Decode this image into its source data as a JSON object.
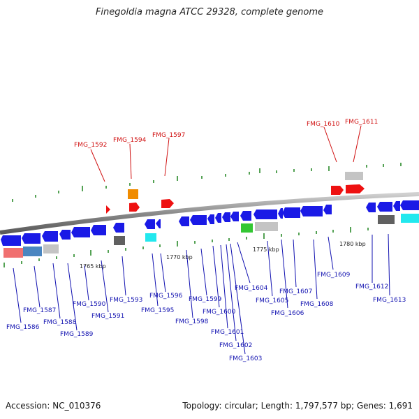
{
  "title": "Finegoldia magna ATCC 29328, complete genome",
  "accession": "Accession: NC_010376",
  "summary": "Topology: circular; Length: 1,797,577 bp; Genes: 1,691",
  "scale_labels": [
    "1765 kbp",
    "1770 kbp",
    "1775 kbp",
    "1780 kbp"
  ],
  "colors": {
    "cds_forward_blue": "#1a1ae6",
    "rna_red": "#ee1111",
    "label_red": "#d01010",
    "label_blue": "#1010b0",
    "orange": "#f08c00",
    "cyan": "#22e8ee",
    "green": "#33c733",
    "salmon": "#f07070",
    "steelblue": "#4a86c0",
    "gray": "#c0c0c0",
    "darkgray": "#606060",
    "backbone": "#808080"
  },
  "highlighted_genes": [
    "FMG_1592",
    "FMG_1594",
    "FMG_1597",
    "FMG_1610",
    "FMG_1611"
  ],
  "genes": [
    "FMG_1586",
    "FMG_1587",
    "FMG_1588",
    "FMG_1589",
    "FMG_1590",
    "FMG_1591",
    "FMG_1593",
    "FMG_1595",
    "FMG_1596",
    "FMG_1598",
    "FMG_1599",
    "FMG_1600",
    "FMG_1601",
    "FMG_1602",
    "FMG_1603",
    "FMG_1604",
    "FMG_1605",
    "FMG_1606",
    "FMG_1607",
    "FMG_1608",
    "FMG_1609",
    "FMG_1612",
    "FMG_1613"
  ]
}
